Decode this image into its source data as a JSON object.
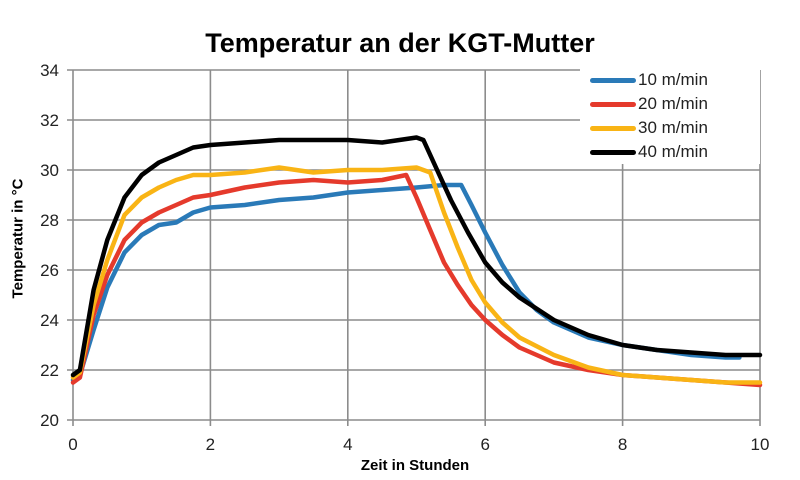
{
  "chart_data": {
    "type": "line",
    "title": "Temperatur an der KGT-Mutter",
    "xlabel": "Zeit in Stunden",
    "ylabel": "Temperatur in °C",
    "xlim": [
      0,
      10
    ],
    "ylim": [
      20,
      34
    ],
    "xticks": [
      0,
      2,
      4,
      6,
      8,
      10
    ],
    "yticks": [
      20,
      22,
      24,
      26,
      28,
      30,
      32,
      34
    ],
    "grid": true,
    "legend_position": "top-right",
    "series": [
      {
        "name": "10 m/min",
        "color": "#2a7ab8",
        "x": [
          0,
          0.1,
          0.3,
          0.5,
          0.75,
          1.0,
          1.25,
          1.5,
          1.75,
          2.0,
          2.5,
          3.0,
          3.5,
          4.0,
          4.5,
          5.0,
          5.4,
          5.65,
          5.8,
          6.0,
          6.25,
          6.5,
          6.75,
          7.0,
          7.5,
          8.0,
          8.5,
          9.0,
          9.5,
          9.7
        ],
        "values": [
          21.6,
          21.8,
          23.6,
          25.3,
          26.7,
          27.4,
          27.8,
          27.9,
          28.3,
          28.5,
          28.6,
          28.8,
          28.9,
          29.1,
          29.2,
          29.3,
          29.4,
          29.4,
          28.6,
          27.5,
          26.2,
          25.1,
          24.4,
          23.9,
          23.3,
          23.0,
          22.8,
          22.6,
          22.5,
          22.5
        ]
      },
      {
        "name": "20 m/min",
        "color": "#e53a2c",
        "x": [
          0,
          0.1,
          0.3,
          0.5,
          0.75,
          1.0,
          1.25,
          1.5,
          1.75,
          2.0,
          2.5,
          3.0,
          3.5,
          4.0,
          4.5,
          4.85,
          5.0,
          5.2,
          5.4,
          5.6,
          5.8,
          6.0,
          6.25,
          6.5,
          7.0,
          7.5,
          8.0,
          8.5,
          9.0,
          9.5,
          10.0
        ],
        "values": [
          21.5,
          21.7,
          24.2,
          25.8,
          27.2,
          27.9,
          28.3,
          28.6,
          28.9,
          29.0,
          29.3,
          29.5,
          29.6,
          29.5,
          29.6,
          29.8,
          28.9,
          27.6,
          26.3,
          25.4,
          24.6,
          24.0,
          23.4,
          22.9,
          22.3,
          22.0,
          21.8,
          21.7,
          21.6,
          21.5,
          21.4
        ]
      },
      {
        "name": "30 m/min",
        "color": "#f9b415",
        "x": [
          0,
          0.1,
          0.3,
          0.5,
          0.75,
          1.0,
          1.25,
          1.5,
          1.75,
          2.0,
          2.5,
          3.0,
          3.5,
          4.0,
          4.5,
          5.0,
          5.2,
          5.4,
          5.6,
          5.8,
          6.0,
          6.25,
          6.5,
          7.0,
          7.5,
          8.0,
          8.5,
          9.0,
          9.5,
          10.0
        ],
        "values": [
          21.7,
          21.9,
          24.6,
          26.4,
          28.2,
          28.9,
          29.3,
          29.6,
          29.8,
          29.8,
          29.9,
          30.1,
          29.9,
          30.0,
          30.0,
          30.1,
          29.9,
          28.3,
          26.9,
          25.6,
          24.7,
          23.9,
          23.3,
          22.6,
          22.1,
          21.8,
          21.7,
          21.6,
          21.5,
          21.5
        ]
      },
      {
        "name": "40 m/min",
        "color": "#000000",
        "x": [
          0,
          0.1,
          0.3,
          0.5,
          0.75,
          1.0,
          1.25,
          1.5,
          1.75,
          2.0,
          2.5,
          3.0,
          3.5,
          4.0,
          4.5,
          5.0,
          5.1,
          5.3,
          5.5,
          5.75,
          6.0,
          6.25,
          6.5,
          7.0,
          7.5,
          8.0,
          8.5,
          9.0,
          9.5,
          10.0
        ],
        "values": [
          21.8,
          22.0,
          25.2,
          27.2,
          28.9,
          29.8,
          30.3,
          30.6,
          30.9,
          31.0,
          31.1,
          31.2,
          31.2,
          31.2,
          31.1,
          31.3,
          31.2,
          30.0,
          28.8,
          27.5,
          26.3,
          25.5,
          24.9,
          24.0,
          23.4,
          23.0,
          22.8,
          22.7,
          22.6,
          22.6
        ]
      }
    ]
  },
  "legend": {
    "items": [
      {
        "label": "10 m/min",
        "color": "#2a7ab8"
      },
      {
        "label": "20 m/min",
        "color": "#e53a2c"
      },
      {
        "label": "30 m/min",
        "color": "#f9b415"
      },
      {
        "label": "40 m/min",
        "color": "#000000"
      }
    ]
  }
}
